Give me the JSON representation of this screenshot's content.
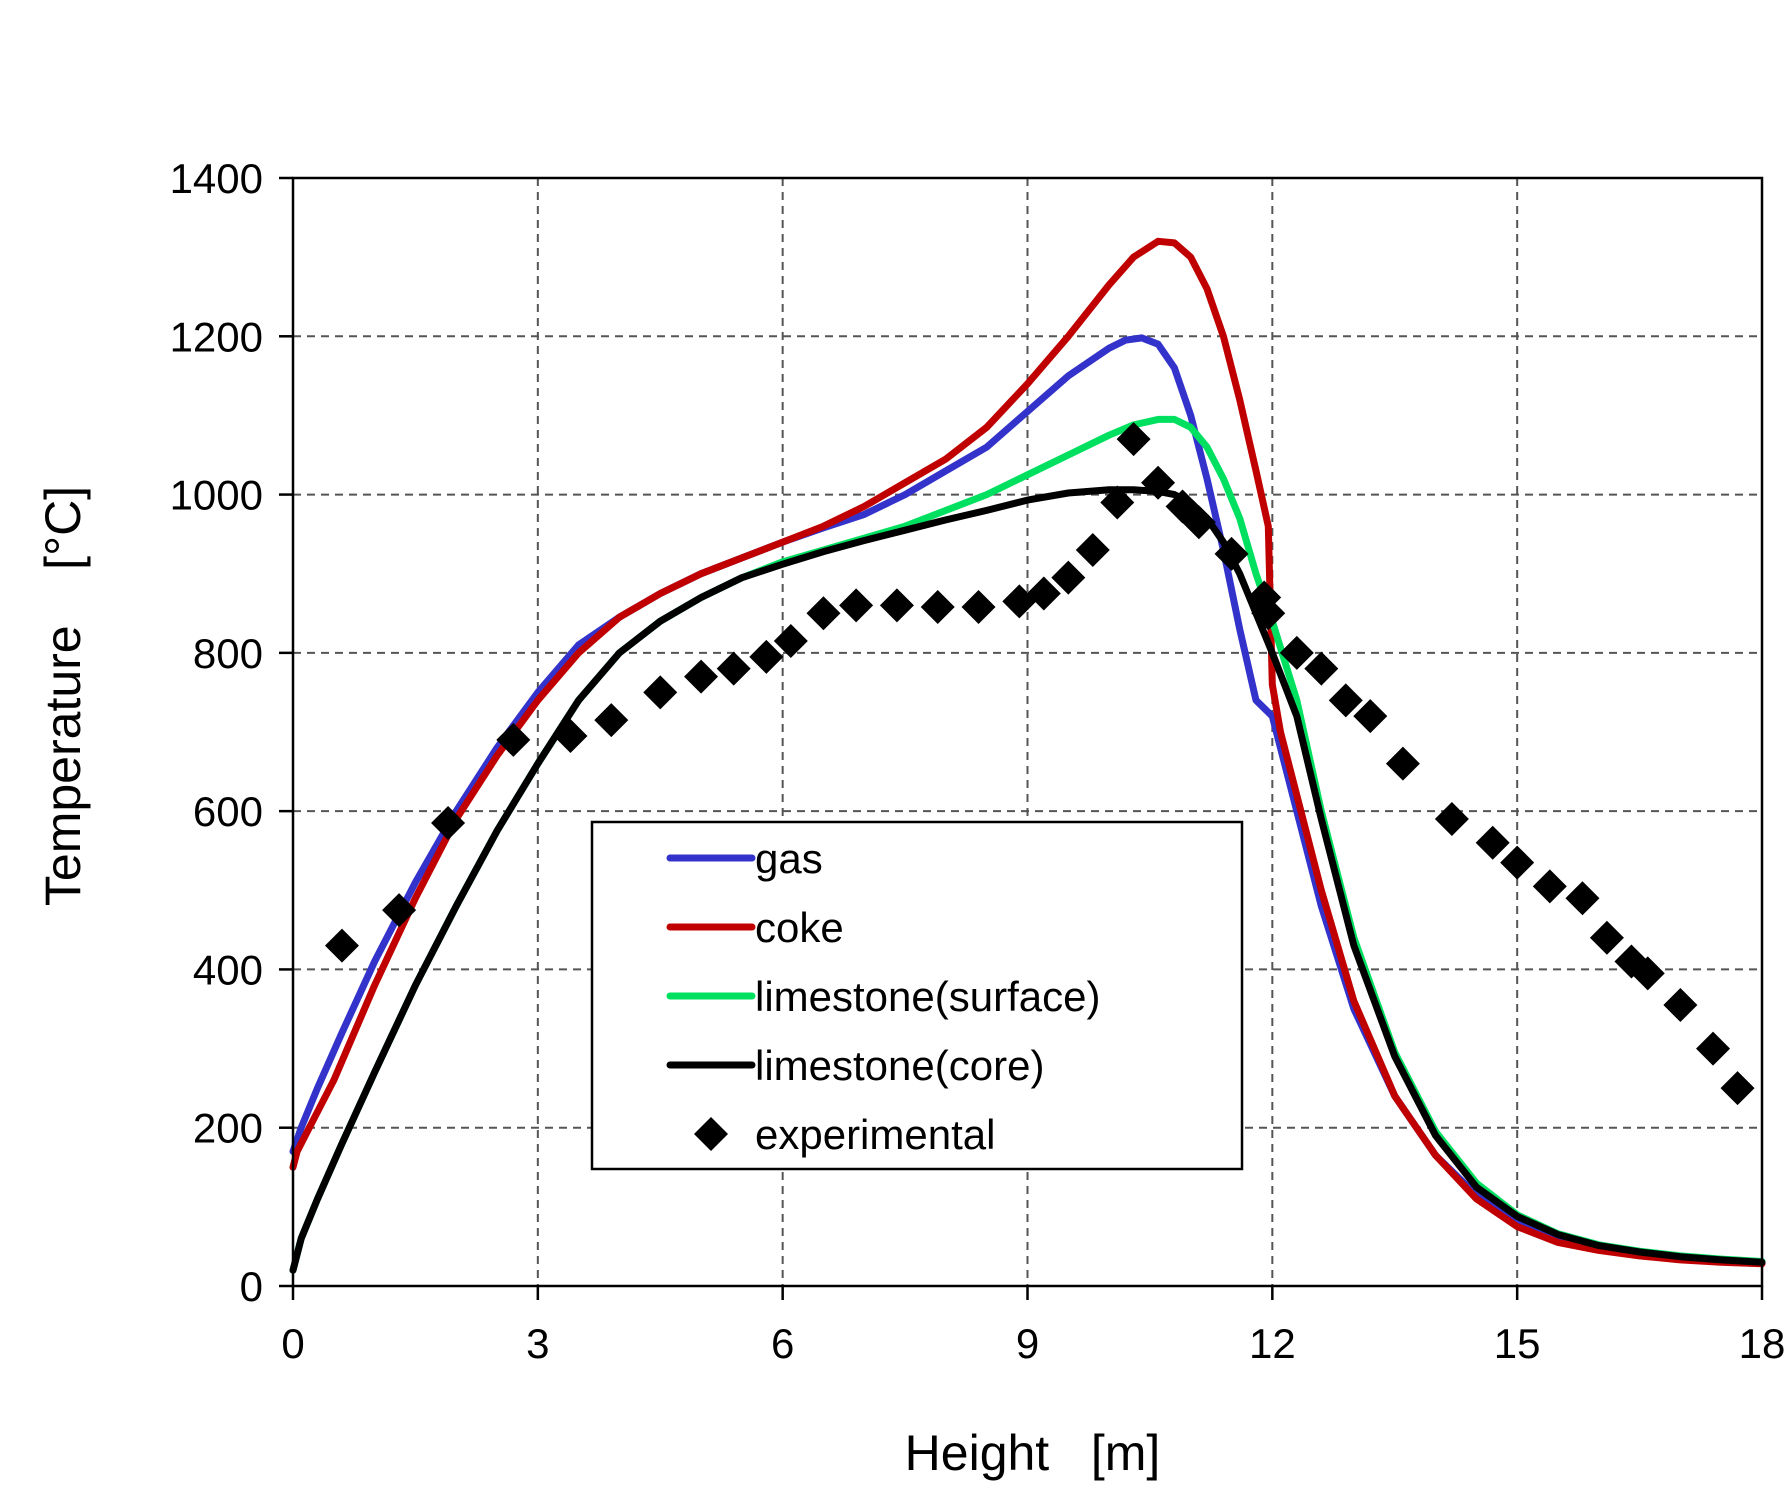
{
  "chart_data": {
    "type": "line",
    "title": "",
    "xlabel": "Height   [m]",
    "ylabel": "Temperature    [°C]",
    "xlim": [
      0,
      18
    ],
    "ylim": [
      0,
      1400
    ],
    "xticks": [
      0,
      3,
      6,
      9,
      12,
      15,
      18
    ],
    "yticks": [
      0,
      200,
      400,
      600,
      800,
      1000,
      1200,
      1400
    ],
    "grid": true,
    "legend_position": "lower-center",
    "series": [
      {
        "name": "gas",
        "color": "#3333CC",
        "style": "line",
        "x": [
          0,
          0.1,
          0.3,
          0.6,
          1,
          1.5,
          2,
          2.5,
          3,
          3.5,
          4,
          4.5,
          5,
          5.5,
          6,
          6.5,
          7,
          7.5,
          8,
          8.5,
          9,
          9.5,
          10,
          10.2,
          10.4,
          10.6,
          10.8,
          11,
          11.2,
          11.4,
          11.6,
          11.8,
          12,
          12.3,
          12.6,
          13,
          13.5,
          14,
          14.5,
          15,
          15.5,
          16,
          16.5,
          17,
          17.5,
          18
        ],
        "y": [
          170,
          200,
          250,
          320,
          410,
          510,
          600,
          680,
          750,
          810,
          845,
          875,
          900,
          920,
          940,
          958,
          975,
          1000,
          1030,
          1060,
          1105,
          1150,
          1185,
          1195,
          1198,
          1190,
          1160,
          1100,
          1020,
          930,
          830,
          740,
          720,
          600,
          480,
          350,
          240,
          165,
          115,
          80,
          60,
          48,
          40,
          35,
          31,
          29
        ]
      },
      {
        "name": "coke",
        "color": "#C00000",
        "style": "line",
        "x": [
          0,
          0.05,
          0.2,
          0.5,
          1,
          1.5,
          2,
          2.5,
          3,
          3.5,
          4,
          4.5,
          5,
          5.5,
          6,
          6.5,
          7,
          7.5,
          8,
          8.5,
          9,
          9.5,
          10,
          10.3,
          10.6,
          10.8,
          11,
          11.2,
          11.4,
          11.6,
          11.8,
          11.95,
          12,
          12.1,
          12.3,
          12.6,
          13,
          13.5,
          14,
          14.5,
          15,
          15.5,
          16,
          16.5,
          17,
          17.5,
          18
        ],
        "y": [
          150,
          170,
          200,
          260,
          380,
          490,
          590,
          670,
          740,
          800,
          845,
          875,
          900,
          920,
          940,
          960,
          985,
          1015,
          1045,
          1085,
          1140,
          1200,
          1265,
          1300,
          1320,
          1318,
          1300,
          1260,
          1200,
          1120,
          1030,
          960,
          760,
          700,
          620,
          500,
          360,
          240,
          165,
          110,
          75,
          55,
          45,
          38,
          33,
          30,
          28
        ]
      },
      {
        "name": "limestone(surface)",
        "color": "#00E060",
        "style": "line",
        "x": [
          0,
          0.1,
          0.3,
          0.6,
          1,
          1.5,
          2,
          2.5,
          3,
          3.5,
          4,
          4.5,
          5,
          5.5,
          6,
          6.5,
          7,
          7.5,
          8,
          8.5,
          9,
          9.5,
          10,
          10.3,
          10.6,
          10.8,
          11,
          11.2,
          11.4,
          11.6,
          11.8,
          12,
          12.3,
          12.6,
          13,
          13.5,
          14,
          14.5,
          15,
          15.5,
          16,
          16.5,
          17,
          17.5,
          18
        ],
        "y": [
          20,
          60,
          110,
          180,
          270,
          380,
          480,
          575,
          660,
          740,
          800,
          840,
          870,
          895,
          915,
          930,
          945,
          960,
          980,
          1000,
          1025,
          1050,
          1075,
          1088,
          1095,
          1095,
          1085,
          1060,
          1020,
          970,
          900,
          840,
          740,
          600,
          440,
          295,
          195,
          130,
          90,
          66,
          52,
          44,
          38,
          34,
          31
        ]
      },
      {
        "name": "limestone(core)",
        "color": "#000000",
        "style": "line",
        "x": [
          0,
          0.1,
          0.3,
          0.6,
          1,
          1.5,
          2,
          2.5,
          3,
          3.5,
          4,
          4.5,
          5,
          5.5,
          6,
          6.5,
          7,
          7.5,
          8,
          8.5,
          9,
          9.5,
          10,
          10.3,
          10.6,
          10.8,
          11,
          11.2,
          11.4,
          11.6,
          11.8,
          12,
          12.3,
          12.6,
          13,
          13.5,
          14,
          14.5,
          15,
          15.5,
          16,
          16.5,
          17,
          17.5,
          18
        ],
        "y": [
          20,
          60,
          110,
          180,
          270,
          380,
          480,
          575,
          660,
          740,
          800,
          840,
          870,
          895,
          912,
          928,
          942,
          955,
          968,
          980,
          993,
          1002,
          1006,
          1006,
          1004,
          1000,
          990,
          970,
          940,
          900,
          850,
          800,
          720,
          590,
          430,
          290,
          190,
          125,
          88,
          65,
          51,
          43,
          37,
          33,
          30
        ]
      },
      {
        "name": "experimental",
        "color": "#000000",
        "style": "marker",
        "x": [
          0.6,
          1.3,
          1.9,
          2.7,
          3.4,
          3.9,
          4.5,
          5.0,
          5.4,
          5.8,
          6.1,
          6.5,
          6.9,
          7.4,
          7.9,
          8.4,
          8.9,
          9.2,
          9.5,
          9.8,
          10.1,
          10.3,
          10.6,
          10.9,
          11.1,
          11.5,
          11.9,
          11.95,
          12.3,
          12.6,
          12.9,
          13.2,
          13.6,
          14.2,
          14.7,
          15.0,
          15.4,
          15.8,
          16.1,
          16.4,
          16.6,
          17.0,
          17.4,
          17.7
        ],
        "y": [
          430,
          475,
          585,
          690,
          695,
          715,
          750,
          770,
          780,
          795,
          815,
          850,
          860,
          860,
          858,
          858,
          865,
          875,
          895,
          930,
          990,
          1070,
          1015,
          985,
          965,
          925,
          870,
          850,
          800,
          780,
          740,
          720,
          660,
          590,
          560,
          535,
          505,
          490,
          440,
          410,
          395,
          355,
          300,
          250
        ]
      }
    ]
  }
}
